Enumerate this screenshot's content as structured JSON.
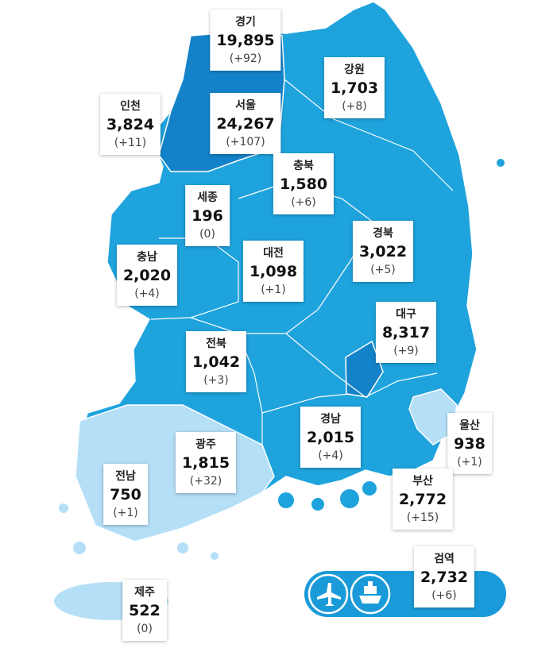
{
  "regions": [
    {
      "name": "경기",
      "total": "19,895",
      "change": "(+92)"
    },
    {
      "name": "강원",
      "total": "1,703",
      "change": "(+8)"
    },
    {
      "name": "인천",
      "total": "3,824",
      "change": "(+11)"
    },
    {
      "name": "서울",
      "total": "24,267",
      "change": "(+107)"
    },
    {
      "name": "충북",
      "total": "1,580",
      "change": "(+6)"
    },
    {
      "name": "세종",
      "total": "196",
      "change": "(0)"
    },
    {
      "name": "경북",
      "total": "3,022",
      "change": "(+5)"
    },
    {
      "name": "충남",
      "total": "2,020",
      "change": "(+4)"
    },
    {
      "name": "대전",
      "total": "1,098",
      "change": "(+1)"
    },
    {
      "name": "대구",
      "total": "8,317",
      "change": "(+9)"
    },
    {
      "name": "전북",
      "total": "1,042",
      "change": "(+3)"
    },
    {
      "name": "경남",
      "total": "2,015",
      "change": "(+4)"
    },
    {
      "name": "울산",
      "total": "938",
      "change": "(+1)"
    },
    {
      "name": "광주",
      "total": "1,815",
      "change": "(+32)"
    },
    {
      "name": "전남",
      "total": "750",
      "change": "(+1)"
    },
    {
      "name": "부산",
      "total": "2,772",
      "change": "(+15)"
    },
    {
      "name": "검역",
      "total": "2,732",
      "change": "(+6)"
    },
    {
      "name": "제주",
      "total": "522",
      "change": "(0)"
    }
  ]
}
